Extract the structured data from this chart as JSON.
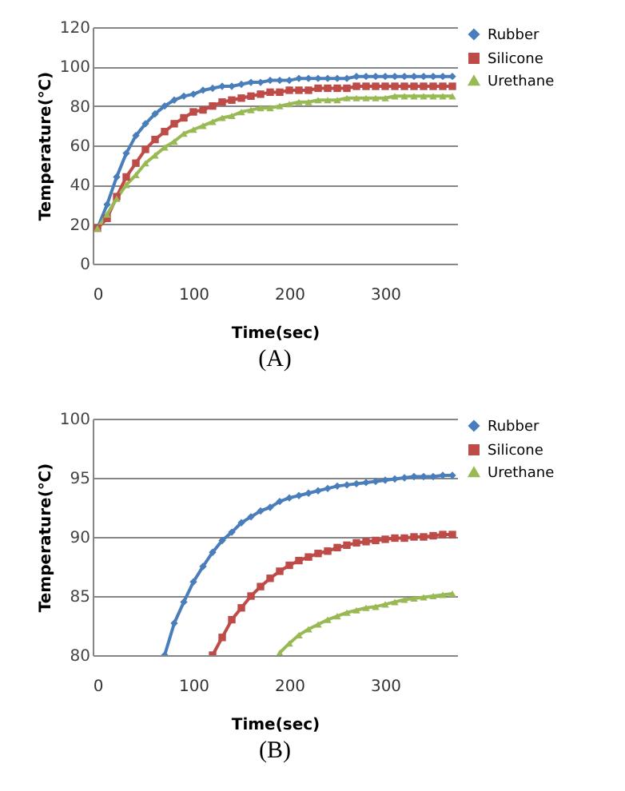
{
  "chart_data": [
    {
      "type": "line",
      "xlabel": "Time(sec)",
      "ylabel": "Temperature(℃)",
      "annotations": [
        "(A)"
      ],
      "x": [
        0,
        10,
        20,
        30,
        40,
        50,
        60,
        70,
        80,
        90,
        100,
        110,
        120,
        130,
        140,
        150,
        160,
        170,
        180,
        190,
        200,
        210,
        220,
        230,
        240,
        250,
        260,
        270,
        280,
        290,
        300,
        310,
        320,
        330,
        340,
        350,
        360,
        370
      ],
      "xlim": [
        -5,
        375
      ],
      "xticks": [
        0,
        100,
        200,
        300
      ],
      "ylim": [
        0,
        120
      ],
      "yticks": [
        0,
        20,
        40,
        60,
        80,
        100,
        120
      ],
      "grid": "y",
      "legend": "right",
      "series": [
        {
          "name": "Rubber",
          "color": "#4a7ebb",
          "marker": "diamond",
          "values": [
            18,
            30,
            44,
            56,
            65,
            71,
            76,
            80,
            83,
            85,
            86,
            88,
            89,
            90,
            90,
            91,
            92,
            92,
            93,
            93,
            93,
            94,
            94,
            94,
            94,
            94,
            94,
            95,
            95,
            95,
            95,
            95,
            95,
            95,
            95,
            95,
            95,
            95
          ]
        },
        {
          "name": "Silicone",
          "color": "#be4b48",
          "marker": "square",
          "values": [
            18,
            23,
            34,
            44,
            51,
            58,
            63,
            67,
            71,
            74,
            77,
            78,
            80,
            82,
            83,
            84,
            85,
            86,
            87,
            87,
            88,
            88,
            88,
            89,
            89,
            89,
            89,
            90,
            90,
            90,
            90,
            90,
            90,
            90,
            90,
            90,
            90,
            90
          ]
        },
        {
          "name": "Urethane",
          "color": "#98b954",
          "marker": "triangle",
          "values": [
            18,
            25,
            33,
            40,
            45,
            51,
            55,
            59,
            62,
            66,
            68,
            70,
            72,
            74,
            75,
            77,
            78,
            79,
            79,
            80,
            81,
            82,
            82,
            83,
            83,
            83,
            84,
            84,
            84,
            84,
            84,
            85,
            85,
            85,
            85,
            85,
            85,
            85
          ]
        }
      ]
    },
    {
      "type": "line",
      "xlabel": "Time(sec)",
      "ylabel": "Temperature(℃)",
      "annotations": [
        "(B)"
      ],
      "xlim": [
        -5,
        375
      ],
      "xticks": [
        0,
        100,
        200,
        300
      ],
      "ylim": [
        80,
        100
      ],
      "yticks": [
        80,
        85,
        90,
        95,
        100
      ],
      "grid": "y",
      "legend": "right",
      "series": [
        {
          "name": "Rubber",
          "color": "#4a7ebb",
          "marker": "diamond",
          "x": [
            70,
            80,
            90,
            100,
            110,
            120,
            130,
            140,
            150,
            160,
            170,
            180,
            190,
            200,
            210,
            220,
            230,
            240,
            250,
            260,
            270,
            280,
            290,
            300,
            310,
            320,
            330,
            340,
            350,
            360,
            370
          ],
          "values": [
            80,
            82.7,
            84.5,
            86.2,
            87.5,
            88.7,
            89.7,
            90.4,
            91.2,
            91.7,
            92.2,
            92.5,
            93.0,
            93.3,
            93.5,
            93.7,
            93.9,
            94.1,
            94.3,
            94.4,
            94.5,
            94.6,
            94.7,
            94.8,
            94.9,
            95.0,
            95.1,
            95.1,
            95.1,
            95.2,
            95.2
          ]
        },
        {
          "name": "Silicone",
          "color": "#be4b48",
          "marker": "square",
          "x": [
            120,
            130,
            140,
            150,
            160,
            170,
            180,
            190,
            200,
            210,
            220,
            230,
            240,
            250,
            260,
            270,
            280,
            290,
            300,
            310,
            320,
            330,
            340,
            350,
            360,
            370
          ],
          "values": [
            80,
            81.5,
            83,
            84,
            85,
            85.8,
            86.5,
            87.1,
            87.6,
            88.0,
            88.3,
            88.6,
            88.8,
            89.1,
            89.3,
            89.5,
            89.6,
            89.7,
            89.8,
            89.9,
            89.9,
            90.0,
            90.0,
            90.1,
            90.2,
            90.2
          ]
        },
        {
          "name": "Urethane",
          "color": "#98b954",
          "marker": "triangle",
          "x": [
            190,
            200,
            210,
            220,
            230,
            240,
            250,
            260,
            270,
            280,
            290,
            300,
            310,
            320,
            330,
            340,
            350,
            360,
            370
          ],
          "values": [
            80.2,
            81,
            81.7,
            82.2,
            82.6,
            83,
            83.3,
            83.6,
            83.8,
            84,
            84.1,
            84.3,
            84.5,
            84.7,
            84.8,
            84.9,
            85.0,
            85.1,
            85.2
          ]
        }
      ]
    }
  ]
}
